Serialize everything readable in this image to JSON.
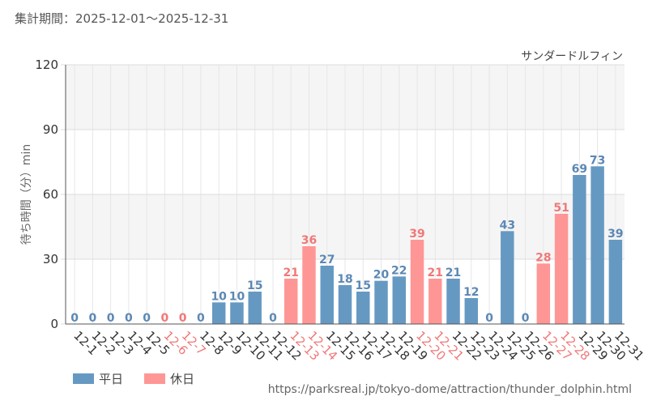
{
  "header": {
    "period_label": "集計期間：2025-12-01～2025-12-31"
  },
  "colors": {
    "weekday": "#6699c2",
    "holiday": "#ff9696",
    "weekday_text": "#5b88b4",
    "holiday_text": "#f07878"
  },
  "legend": {
    "weekday": "平日",
    "holiday": "休日"
  },
  "footer": {
    "source_url": "https://parksreal.jp/tokyo-dome/attraction/thunder_dolphin.html"
  },
  "chart_data": {
    "type": "bar",
    "title": "サンダードルフィン",
    "xlabel": "",
    "ylabel": "待ち時間（分）min",
    "ylim": [
      0,
      120
    ],
    "yticks": [
      "0",
      "30",
      "60",
      "90",
      "120"
    ],
    "categories": [
      "12-1",
      "12-2",
      "12-3",
      "12-4",
      "12-5",
      "12-6",
      "12-7",
      "12-8",
      "12-9",
      "12-10",
      "12-11",
      "12-12",
      "12-13",
      "12-14",
      "12-15",
      "12-16",
      "12-17",
      "12-18",
      "12-19",
      "12-20",
      "12-21",
      "12-22",
      "12-23",
      "12-24",
      "12-25",
      "12-26",
      "12-27",
      "12-28",
      "12-29",
      "12-30",
      "12-31"
    ],
    "values": [
      0,
      0,
      0,
      0,
      0,
      0,
      0,
      0,
      10,
      10,
      15,
      0,
      21,
      36,
      27,
      18,
      15,
      20,
      22,
      39,
      21,
      21,
      12,
      0,
      43,
      0,
      28,
      51,
      69,
      73,
      39
    ],
    "day_type": [
      "weekday",
      "weekday",
      "weekday",
      "weekday",
      "weekday",
      "holiday",
      "holiday",
      "weekday",
      "weekday",
      "weekday",
      "weekday",
      "weekday",
      "holiday",
      "holiday",
      "weekday",
      "weekday",
      "weekday",
      "weekday",
      "weekday",
      "holiday",
      "holiday",
      "weekday",
      "weekday",
      "weekday",
      "weekday",
      "weekday",
      "holiday",
      "holiday",
      "weekday",
      "weekday",
      "weekday"
    ]
  }
}
